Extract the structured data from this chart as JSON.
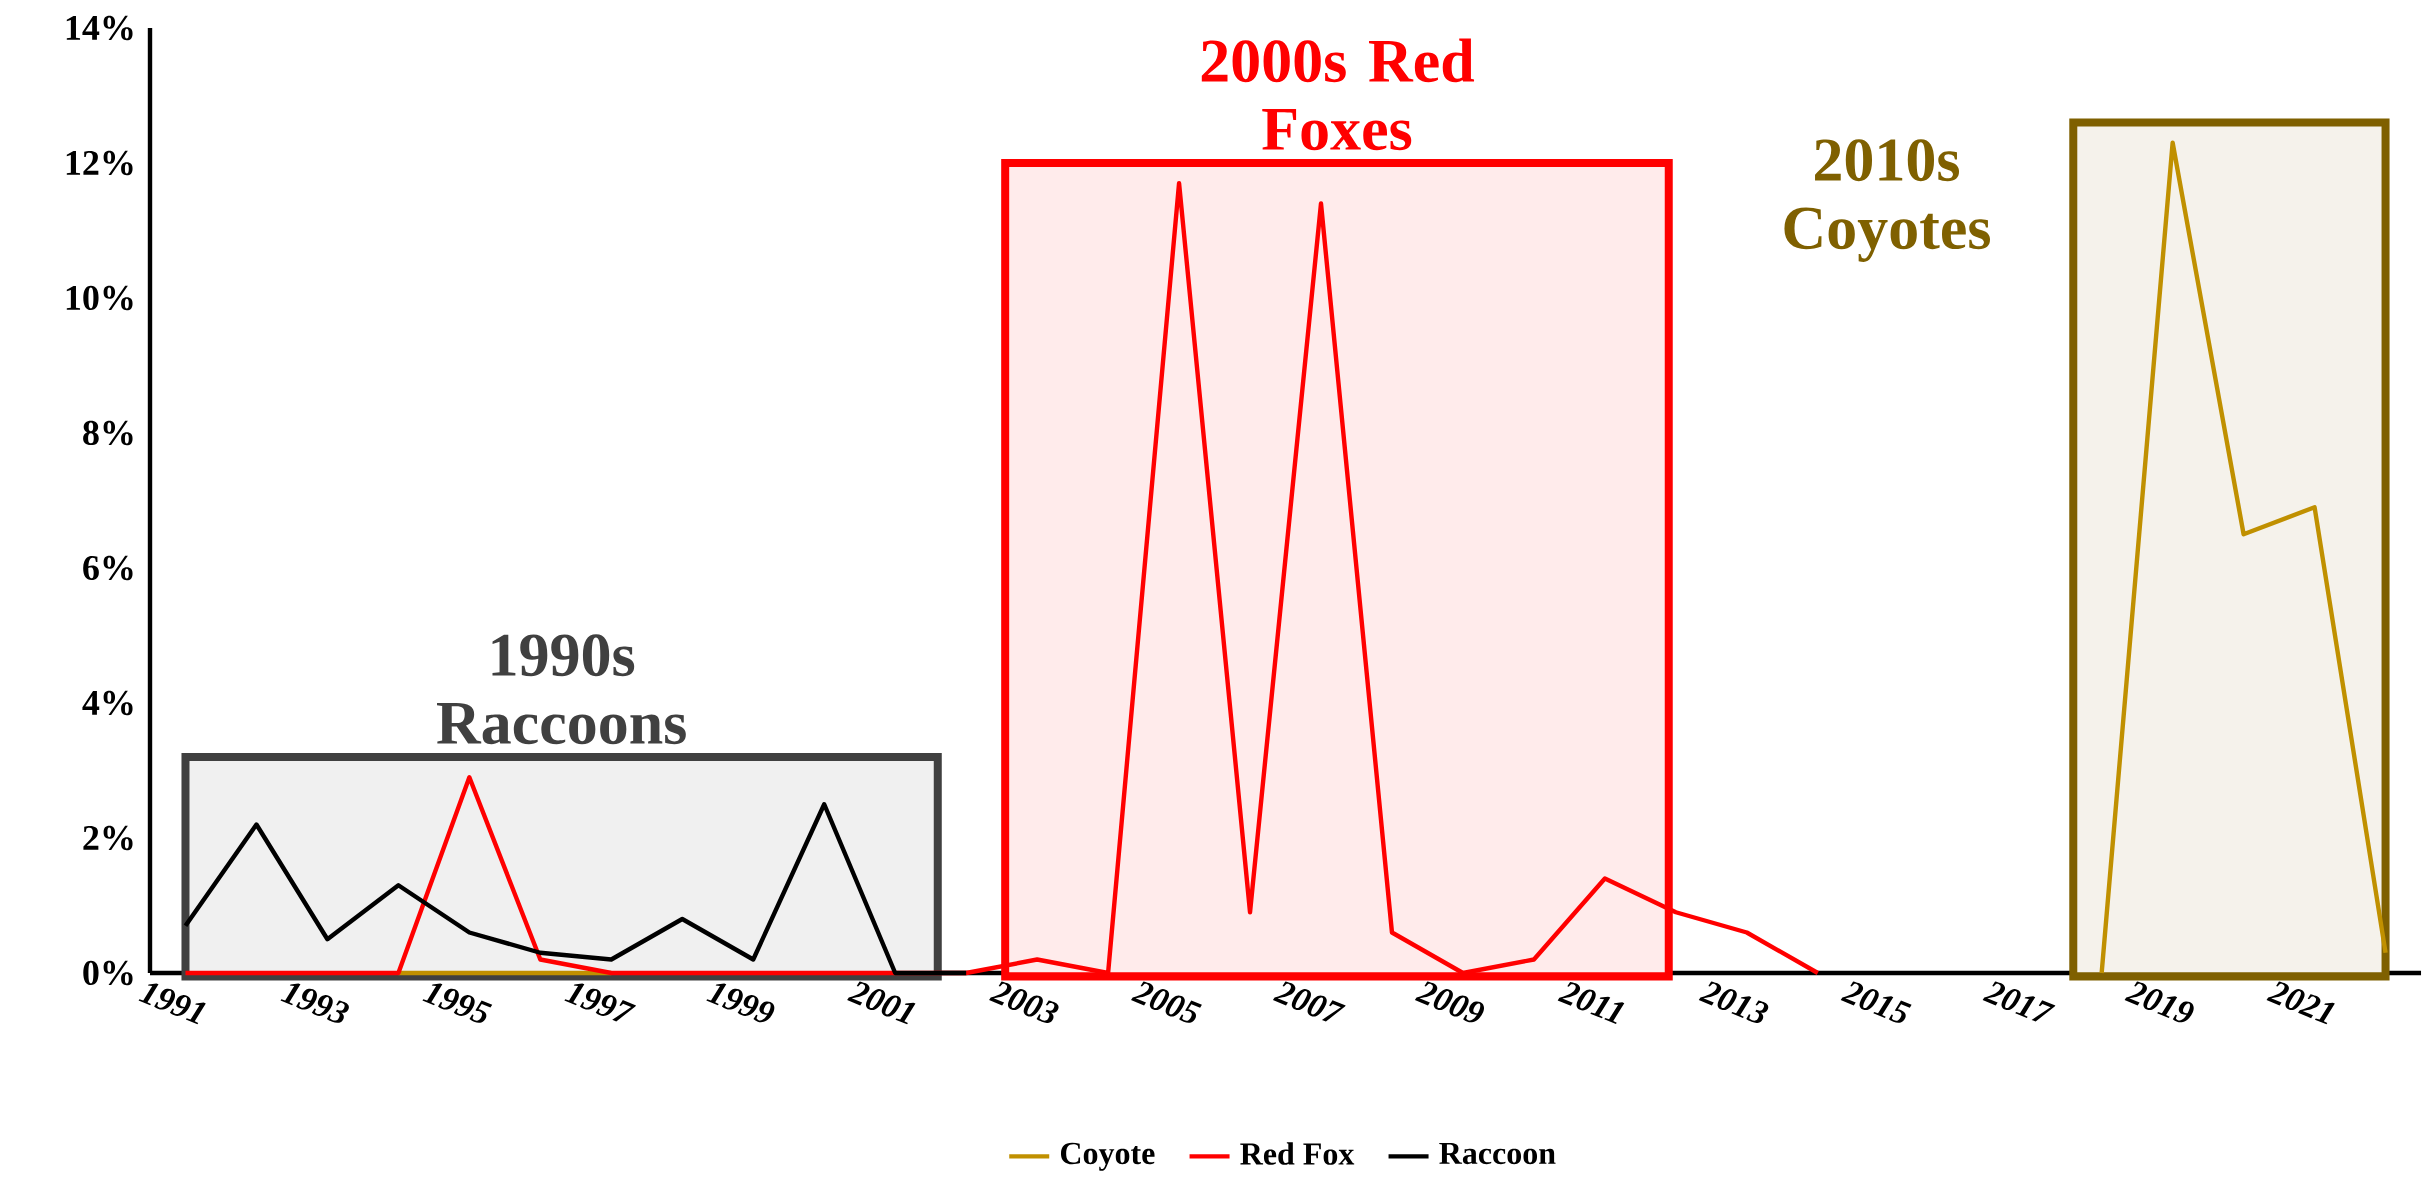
{
  "chart_data": {
    "type": "line",
    "x": [
      1991,
      1992,
      1993,
      1994,
      1995,
      1996,
      1997,
      1998,
      1999,
      2000,
      2001,
      2002,
      2003,
      2004,
      2005,
      2006,
      2007,
      2008,
      2009,
      2010,
      2011,
      2012,
      2013,
      2014,
      2015,
      2016,
      2017,
      2018,
      2019,
      2020,
      2021,
      2022
    ],
    "series": [
      {
        "name": "Coyote",
        "color": "#c09000",
        "values": [
          null,
          null,
          null,
          0,
          0,
          0,
          0,
          null,
          null,
          null,
          null,
          null,
          null,
          null,
          null,
          null,
          null,
          null,
          null,
          null,
          null,
          null,
          null,
          null,
          null,
          null,
          null,
          0,
          12.3,
          6.5,
          6.9,
          0.3
        ]
      },
      {
        "name": "Red Fox",
        "color": "#ff0000",
        "values": [
          0,
          0,
          0,
          0,
          2.9,
          0.2,
          0,
          0,
          0,
          0,
          0,
          0,
          0.2,
          0,
          11.7,
          0.9,
          11.4,
          0.6,
          0,
          0.2,
          1.4,
          0.9,
          0.6,
          0,
          null,
          null,
          null,
          null,
          null,
          null,
          null,
          null
        ]
      },
      {
        "name": "Raccoon",
        "color": "#000000",
        "values": [
          0.7,
          2.2,
          0.5,
          1.3,
          0.6,
          0.3,
          0.2,
          0.8,
          0.2,
          2.5,
          0,
          0,
          null,
          null,
          null,
          null,
          null,
          null,
          null,
          null,
          null,
          null,
          null,
          null,
          null,
          null,
          null,
          null,
          null,
          null,
          null,
          null
        ]
      }
    ],
    "xlim": [
      1990.5,
      2022.5
    ],
    "xticks": [
      1991,
      1993,
      1995,
      1997,
      1999,
      2001,
      2003,
      2005,
      2007,
      2009,
      2011,
      2013,
      2015,
      2017,
      2019,
      2021
    ],
    "ylim": [
      0,
      14
    ],
    "yticks": [
      {
        "value": 0,
        "label": "0%"
      },
      {
        "value": 2,
        "label": "2%"
      },
      {
        "value": 4,
        "label": "4%"
      },
      {
        "value": 6,
        "label": "6%"
      },
      {
        "value": 8,
        "label": "8%"
      },
      {
        "value": 10,
        "label": "10%"
      },
      {
        "value": 12,
        "label": "12%"
      },
      {
        "value": 14,
        "label": "14%"
      }
    ],
    "bands": [
      {
        "axis": "x",
        "from": 1991,
        "to": 2001.6,
        "label": "1990s Raccoons",
        "color": "#404040"
      },
      {
        "axis": "x",
        "from": 2002.55,
        "to": 2011.9,
        "label": "2000s Red Foxes",
        "color": "#ff0000"
      },
      {
        "axis": "x",
        "from": 2017.6,
        "to": 2022,
        "label": "2010s Coyotes",
        "color": "#7f6000"
      }
    ],
    "legend": "bottom",
    "grid": false,
    "marker": "none",
    "line_style": "solid"
  }
}
